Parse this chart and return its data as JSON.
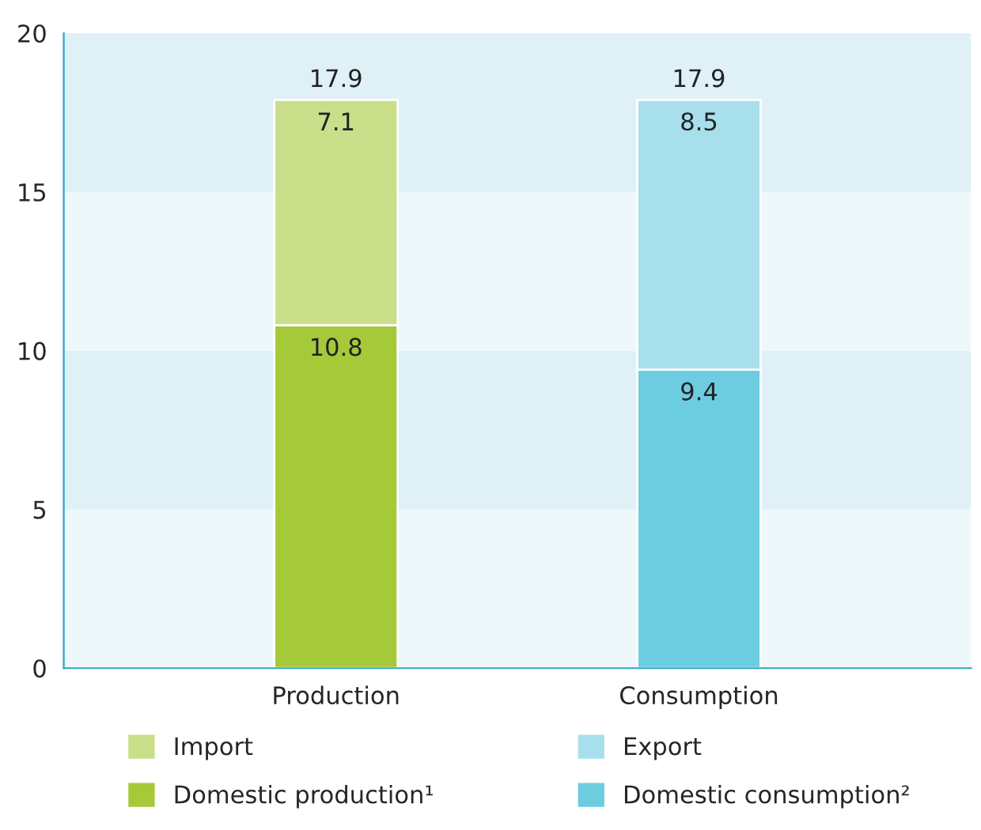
{
  "chart_data": {
    "type": "bar",
    "stacked": true,
    "categories": [
      "Production",
      "Consumption"
    ],
    "series": [
      {
        "name": "Domestic production¹",
        "color": "#a6c93a",
        "values": [
          10.8,
          null
        ]
      },
      {
        "name": "Import",
        "color": "#c9df8a",
        "values": [
          7.1,
          null
        ]
      },
      {
        "name": "Domestic consumption²",
        "color": "#6dcde0",
        "values": [
          null,
          9.4
        ]
      },
      {
        "name": "Export",
        "color": "#a8dfec",
        "values": [
          null,
          8.5
        ]
      }
    ],
    "totals": [
      "17.9",
      "17.9"
    ],
    "data_labels": true,
    "ylim": [
      0,
      20
    ],
    "yticks": [
      0,
      5,
      10,
      15,
      20
    ],
    "grid": false,
    "legend": "bottom",
    "bands": [
      {
        "axis": "y",
        "from": 0,
        "to": 5,
        "color": "#eef8fb"
      },
      {
        "axis": "y",
        "from": 5,
        "to": 10,
        "color": "#dff1f6"
      },
      {
        "axis": "y",
        "from": 10,
        "to": 15,
        "color": "#eef8fb"
      },
      {
        "axis": "y",
        "from": 15,
        "to": 20,
        "color": "#dff1f6"
      }
    ]
  }
}
